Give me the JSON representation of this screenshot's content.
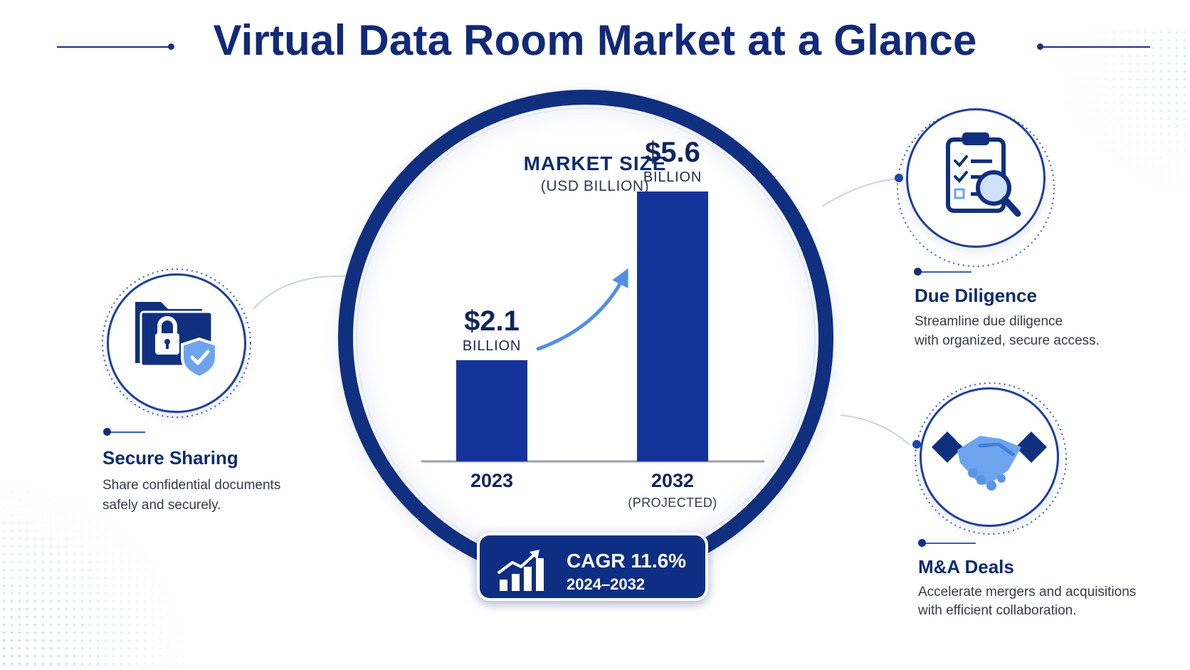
{
  "title": "Virtual Data Room Market at a Glance",
  "chart_data": {
    "type": "bar",
    "title": "MARKET SIZE",
    "subtitle": "(USD BILLION)",
    "categories": [
      "2023",
      "2032"
    ],
    "category_notes": [
      "",
      "(PROJECTED)"
    ],
    "values": [
      2.1,
      5.6
    ],
    "value_labels": [
      "$2.1",
      "$5.6"
    ],
    "value_unit_label": "BILLION",
    "ylim": [
      0,
      6.5
    ],
    "grid": false,
    "bar_color": "#14339a"
  },
  "cagr": {
    "label": "CAGR 11.6%",
    "years": "2024–2032"
  },
  "features": {
    "secure_sharing": {
      "title": "Secure Sharing",
      "line1": "Share confidential documents",
      "line2": "safely and securely.",
      "icon": "folder-lock-shield-icon"
    },
    "due_diligence": {
      "title": "Due Diligence",
      "line1": "Streamline due diligence",
      "line2": "with organized, secure access.",
      "icon": "clipboard-magnifier-icon"
    },
    "ma_deals": {
      "title": "M&A Deals",
      "line1": "Accelerate mergers and acquisitions",
      "line2": "with efficient collaboration.",
      "icon": "handshake-icon"
    }
  },
  "colors": {
    "navy": "#10307f",
    "accent": "#3d7fe0",
    "light_blue": "#6ea4ee"
  }
}
